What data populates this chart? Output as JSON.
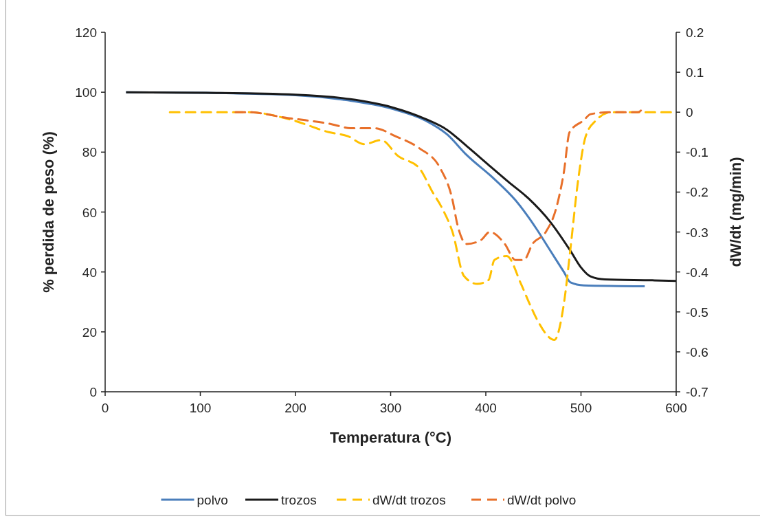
{
  "chart_data": {
    "type": "line",
    "xlabel": "Temperatura (°C)",
    "ylabel": "% perdida de peso (%)",
    "y2label": "dW/dt (mg/min)",
    "xlim": [
      0,
      600
    ],
    "xticks": [
      0,
      100,
      200,
      300,
      400,
      500,
      600
    ],
    "ylim": [
      0,
      120
    ],
    "yticks": [
      0,
      20,
      40,
      60,
      80,
      100,
      120
    ],
    "y2lim": [
      -0.7,
      0.2
    ],
    "y2ticks": [
      -0.7,
      -0.6,
      -0.5,
      -0.4,
      -0.3,
      -0.2,
      -0.1,
      0,
      0.1,
      0.2
    ],
    "legend": "bottom",
    "grid": false,
    "series": [
      {
        "name": "polvo",
        "color": "#4a7ebb",
        "line_style": "solid",
        "x": [
          22,
          106,
          200,
          250,
          301,
          337,
          359,
          380,
          409,
          431,
          453,
          467,
          482,
          489,
          503,
          539,
          567
        ],
        "values": [
          100,
          99.8,
          99,
          97.5,
          94.5,
          90.5,
          86,
          79,
          71,
          64,
          54.5,
          47.5,
          40,
          36.5,
          35.5,
          35.3,
          35.2
        ]
      },
      {
        "name": "trozos",
        "color": "#1a1a1a",
        "line_style": "solid",
        "x": [
          22,
          106,
          200,
          250,
          301,
          337,
          359,
          380,
          402,
          424,
          445,
          467,
          489,
          500,
          510,
          525,
          575,
          600
        ],
        "values": [
          100,
          99.8,
          99.2,
          98,
          95,
          91,
          87.5,
          82,
          76,
          70,
          64.5,
          57,
          47,
          41.5,
          38.5,
          37.5,
          37.2,
          37
        ]
      },
      {
        "name": "dW/dt trozos",
        "color": "#ffc000",
        "line_style": "dashed",
        "axis": "y2",
        "x": [
          68,
          150,
          197,
          235,
          255,
          272,
          290,
          308,
          330,
          344,
          354,
          365,
          377,
          391,
          403,
          409,
          422,
          437,
          446,
          454,
          472,
          482,
          489,
          497,
          505,
          516,
          532,
          560,
          600
        ],
        "values": [
          0,
          0,
          -0.02,
          -0.05,
          -0.06,
          -0.08,
          -0.07,
          -0.11,
          -0.14,
          -0.2,
          -0.24,
          -0.3,
          -0.41,
          -0.43,
          -0.42,
          -0.37,
          -0.36,
          -0.43,
          -0.48,
          -0.52,
          -0.57,
          -0.48,
          -0.34,
          -0.17,
          -0.06,
          -0.02,
          0,
          0,
          0
        ]
      },
      {
        "name": "dW/dt polvo",
        "color": "#e8702a",
        "line_style": "dashed",
        "axis": "y2",
        "x": [
          137,
          150,
          193,
          210,
          238,
          258,
          283,
          305,
          330,
          352,
          365,
          370,
          380,
          395,
          404,
          420,
          431,
          440,
          449,
          463,
          474,
          482,
          488,
          503,
          510,
          530,
          560,
          565
        ],
        "values": [
          0,
          0,
          -0.015,
          -0.02,
          -0.03,
          -0.04,
          -0.04,
          -0.06,
          -0.09,
          -0.14,
          -0.22,
          -0.28,
          -0.33,
          -0.32,
          -0.3,
          -0.33,
          -0.37,
          -0.37,
          -0.33,
          -0.3,
          -0.24,
          -0.15,
          -0.05,
          -0.02,
          -0.005,
          0,
          0,
          0.01
        ]
      }
    ]
  }
}
